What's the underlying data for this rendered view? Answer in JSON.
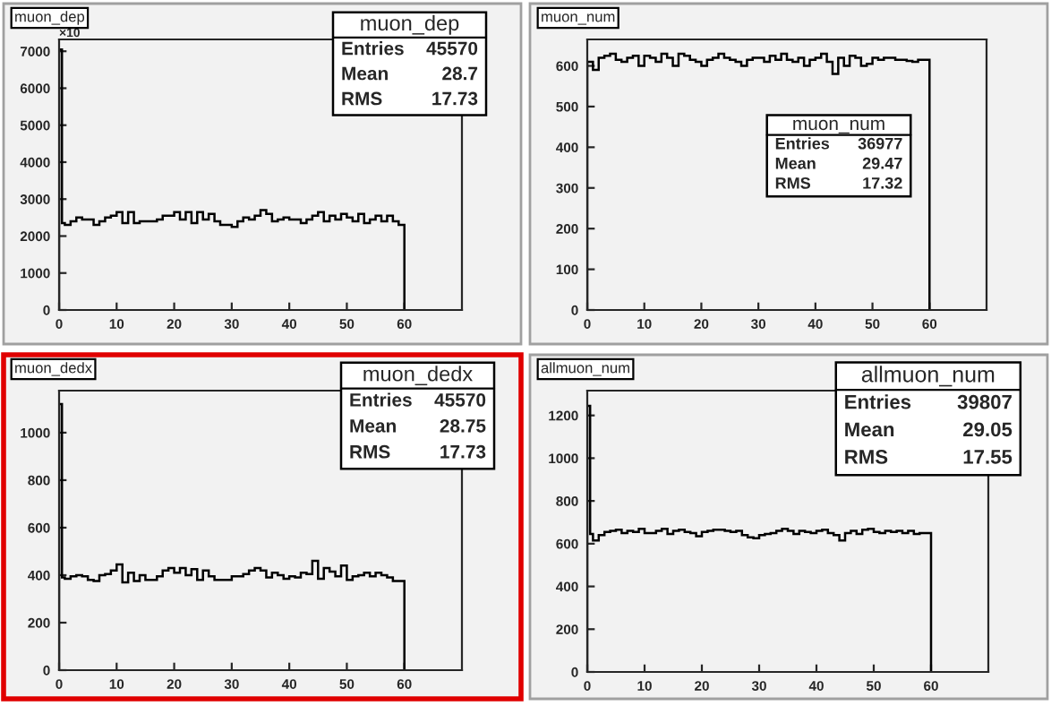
{
  "chart_data": [
    {
      "type": "histogram",
      "title": "muon_dep",
      "color": "#000000",
      "grid": false,
      "bins": [
        0,
        0.5,
        1,
        2,
        3,
        4,
        5,
        6,
        7,
        8,
        9,
        10,
        11,
        12,
        13,
        14,
        15,
        16,
        17,
        18,
        19,
        20,
        21,
        22,
        23,
        24,
        25,
        26,
        27,
        28,
        29,
        30,
        31,
        32,
        33,
        34,
        35,
        36,
        37,
        38,
        39,
        40,
        41,
        42,
        43,
        44,
        45,
        46,
        47,
        48,
        49,
        50,
        51,
        52,
        53,
        54,
        55,
        56,
        57,
        58,
        59,
        60
      ],
      "values": [
        7050,
        2350,
        2300,
        2400,
        2500,
        2450,
        2450,
        2300,
        2400,
        2500,
        2550,
        2650,
        2350,
        2650,
        2350,
        2400,
        2400,
        2400,
        2450,
        2550,
        2550,
        2650,
        2450,
        2650,
        2350,
        2650,
        2450,
        2600,
        2400,
        2300,
        2300,
        2250,
        2400,
        2500,
        2450,
        2550,
        2700,
        2600,
        2400,
        2450,
        2500,
        2450,
        2450,
        2350,
        2450,
        2550,
        2650,
        2400,
        2550,
        2450,
        2600,
        2500,
        2400,
        2600,
        2350,
        2450,
        2550,
        2400,
        2550,
        2400,
        2300
      ],
      "xlim": [
        0,
        70
      ],
      "xticks": [
        0,
        10,
        20,
        30,
        40,
        50,
        60
      ],
      "ylim": [
        0,
        7320
      ],
      "yticks": [
        0,
        1000,
        2000,
        3000,
        4000,
        5000,
        6000,
        7000
      ],
      "annotations": [
        "×10",
        "muon_dep",
        "Entries",
        "45570",
        "Mean",
        "28.7",
        "RMS",
        "17.73"
      ]
    },
    {
      "type": "histogram",
      "title": "muon_num",
      "color": "#000000",
      "grid": false,
      "bins": [
        0,
        1,
        2,
        3,
        4,
        5,
        6,
        7,
        8,
        9,
        10,
        11,
        12,
        13,
        14,
        15,
        16,
        17,
        18,
        19,
        20,
        21,
        22,
        23,
        24,
        25,
        26,
        27,
        28,
        29,
        30,
        31,
        32,
        33,
        34,
        35,
        36,
        37,
        38,
        39,
        40,
        41,
        42,
        43,
        44,
        45,
        46,
        47,
        48,
        49,
        50,
        51,
        52,
        53,
        54,
        55,
        56,
        57,
        58,
        59,
        60
      ],
      "values": [
        610,
        590,
        620,
        625,
        630,
        615,
        610,
        620,
        625,
        600,
        625,
        620,
        610,
        630,
        620,
        600,
        630,
        625,
        615,
        610,
        600,
        615,
        620,
        630,
        620,
        615,
        610,
        600,
        615,
        620,
        620,
        610,
        625,
        615,
        630,
        615,
        610,
        620,
        600,
        615,
        620,
        630,
        610,
        580,
        620,
        600,
        625,
        620,
        600,
        605,
        620,
        615,
        620,
        620,
        615,
        615,
        612,
        610,
        615,
        615
      ],
      "xlim": [
        0,
        70
      ],
      "xticks": [
        0,
        10,
        20,
        30,
        40,
        50,
        60
      ],
      "ylim": [
        0,
        665
      ],
      "yticks": [
        0,
        100,
        200,
        300,
        400,
        500,
        600
      ],
      "annotations": [
        "muon_num",
        "Entries",
        "36977",
        "Mean",
        "29.47",
        "RMS",
        "17.32"
      ]
    },
    {
      "type": "histogram",
      "title": "muon_dedx",
      "color": "#000000",
      "grid": false,
      "bins": [
        0,
        0.5,
        1,
        2,
        3,
        4,
        5,
        6,
        7,
        8,
        9,
        10,
        11,
        12,
        13,
        14,
        15,
        16,
        17,
        18,
        19,
        20,
        21,
        22,
        23,
        24,
        25,
        26,
        27,
        28,
        29,
        30,
        31,
        32,
        33,
        34,
        35,
        36,
        37,
        38,
        39,
        40,
        41,
        42,
        43,
        44,
        45,
        46,
        47,
        48,
        49,
        50,
        51,
        52,
        53,
        54,
        55,
        56,
        57,
        58,
        59,
        60
      ],
      "values": [
        1120,
        390,
        385,
        395,
        400,
        395,
        380,
        375,
        400,
        405,
        420,
        445,
        370,
        410,
        375,
        400,
        380,
        380,
        395,
        420,
        430,
        410,
        430,
        400,
        425,
        380,
        420,
        395,
        380,
        380,
        380,
        395,
        395,
        405,
        420,
        430,
        420,
        390,
        410,
        400,
        385,
        395,
        390,
        410,
        405,
        460,
        385,
        430,
        415,
        395,
        440,
        380,
        395,
        400,
        410,
        395,
        410,
        400,
        390,
        375,
        375
      ],
      "xlim": [
        0,
        70
      ],
      "xticks": [
        0,
        10,
        20,
        30,
        40,
        50,
        60
      ],
      "ylim": [
        0,
        1177
      ],
      "yticks": [
        0,
        200,
        400,
        600,
        800,
        1000
      ],
      "annotations": [
        "muon_dedx",
        "Entries",
        "45570",
        "Mean",
        "28.75",
        "RMS",
        "17.73"
      ]
    },
    {
      "type": "histogram",
      "title": "allmuon_num",
      "color": "#000000",
      "grid": false,
      "bins": [
        0,
        0.5,
        1,
        2,
        3,
        4,
        5,
        6,
        7,
        8,
        9,
        10,
        11,
        12,
        13,
        14,
        15,
        16,
        17,
        18,
        19,
        20,
        21,
        22,
        23,
        24,
        25,
        26,
        27,
        28,
        29,
        30,
        31,
        32,
        33,
        34,
        35,
        36,
        37,
        38,
        39,
        40,
        41,
        42,
        43,
        44,
        45,
        46,
        47,
        48,
        49,
        50,
        51,
        52,
        53,
        54,
        55,
        56,
        57,
        58,
        59,
        60
      ],
      "values": [
        1245,
        645,
        615,
        640,
        655,
        660,
        665,
        650,
        660,
        655,
        670,
        650,
        650,
        660,
        670,
        645,
        660,
        665,
        655,
        650,
        635,
        655,
        660,
        665,
        665,
        660,
        655,
        660,
        640,
        630,
        625,
        640,
        645,
        650,
        660,
        670,
        660,
        645,
        660,
        655,
        650,
        660,
        665,
        650,
        640,
        615,
        650,
        660,
        645,
        665,
        670,
        655,
        650,
        660,
        655,
        660,
        650,
        660,
        645,
        650,
        650
      ],
      "xlim": [
        0,
        70
      ],
      "xticks": [
        0,
        10,
        20,
        30,
        40,
        50,
        60
      ],
      "ylim": [
        0,
        1316
      ],
      "yticks": [
        0,
        200,
        400,
        600,
        800,
        1000,
        1200
      ],
      "annotations": [
        "allmuon_num",
        "Entries",
        "39807",
        "Mean",
        "29.05",
        "RMS",
        "17.55"
      ]
    }
  ]
}
